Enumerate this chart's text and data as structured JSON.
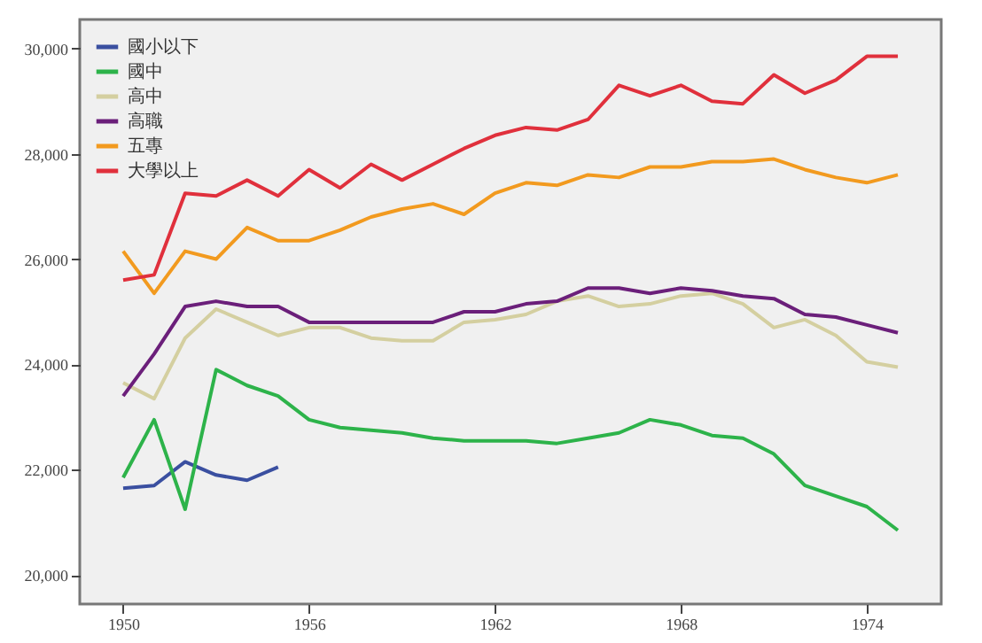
{
  "chart_data": {
    "type": "line",
    "x": [
      1950,
      1951,
      1952,
      1953,
      1954,
      1955,
      1956,
      1957,
      1958,
      1959,
      1960,
      1961,
      1962,
      1963,
      1964,
      1965,
      1966,
      1967,
      1968,
      1969,
      1970,
      1971,
      1972,
      1973,
      1974,
      1975
    ],
    "xlim": [
      1948.6,
      1976.4
    ],
    "xticks": [
      1950,
      1956,
      1962,
      1968,
      1974
    ],
    "ylim": [
      19450,
      30550
    ],
    "yticks": [
      {
        "value": 20000,
        "label": "20,000"
      },
      {
        "value": 22000,
        "label": "22,000"
      },
      {
        "value": 24000,
        "label": "24,000"
      },
      {
        "value": 26000,
        "label": "26,000"
      },
      {
        "value": 28000,
        "label": "28,000"
      },
      {
        "value": 30000,
        "label": "30,000"
      }
    ],
    "grid": false,
    "legend": "top left",
    "marker": "none",
    "line_style": "solid",
    "series": [
      {
        "name": "國小以下",
        "color": "#3a4fa0",
        "values": [
          21650,
          21700,
          22150,
          21900,
          21800,
          22050,
          null,
          null,
          null,
          null,
          null,
          null,
          null,
          null,
          null,
          null,
          null,
          null,
          null,
          null,
          null,
          null,
          null,
          null,
          null,
          null
        ]
      },
      {
        "name": "國中",
        "color": "#2db34a",
        "values": [
          21850,
          22950,
          21250,
          23900,
          23600,
          23400,
          22950,
          22800,
          22750,
          22700,
          22600,
          22550,
          22550,
          22550,
          22500,
          22600,
          22700,
          22950,
          22850,
          22650,
          22600,
          22300,
          21700,
          21500,
          21300,
          20850
        ]
      },
      {
        "name": "高中",
        "color": "#d4cfa0",
        "values": [
          23650,
          23350,
          24500,
          25050,
          24800,
          24550,
          24700,
          24700,
          24500,
          24450,
          24450,
          24800,
          24850,
          24950,
          25200,
          25300,
          25100,
          25150,
          25300,
          25350,
          25150,
          24700,
          24850,
          24550,
          24050,
          23950
        ]
      },
      {
        "name": "高職",
        "color": "#6b1f7a",
        "values": [
          23400,
          24200,
          25100,
          25200,
          25100,
          25100,
          24800,
          24800,
          24800,
          24800,
          24800,
          25000,
          25000,
          25150,
          25200,
          25450,
          25450,
          25350,
          25450,
          25400,
          25300,
          25250,
          24950,
          24900,
          24750,
          24600
        ]
      },
      {
        "name": "五專",
        "color": "#f29a1f",
        "values": [
          26150,
          25350,
          26150,
          26000,
          26600,
          26350,
          26350,
          26550,
          26800,
          26950,
          27050,
          26850,
          27250,
          27450,
          27400,
          27600,
          27550,
          27750,
          27750,
          27850,
          27850,
          27900,
          27700,
          27550,
          27450,
          27600
        ]
      },
      {
        "name": "大學以上",
        "color": "#e0303c",
        "values": [
          25600,
          25700,
          27250,
          27200,
          27500,
          27200,
          27700,
          27350,
          27800,
          27500,
          27800,
          28100,
          28350,
          28500,
          28450,
          28650,
          29300,
          29100,
          29300,
          29000,
          28950,
          29500,
          29150,
          29400,
          29850,
          29850
        ]
      }
    ]
  }
}
